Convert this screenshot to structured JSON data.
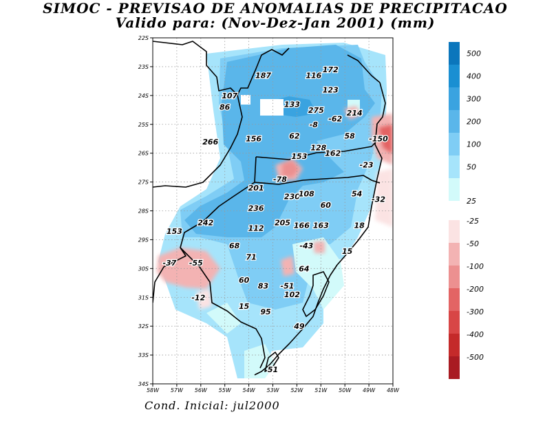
{
  "title_line1": "SIMOC - PREVISAO DE ANOMALIAS DE PRECIPITACAO",
  "title_line2": "Valido para: (Nov-Dez-Jan 2001) (mm)",
  "footer": "Cond. Inicial: jul2000",
  "axes": {
    "lon_labels": [
      "58W",
      "57W",
      "56W",
      "55W",
      "54W",
      "53W",
      "52W",
      "51W",
      "50W",
      "49W",
      "48W"
    ],
    "lat_labels": [
      "22S",
      "23S",
      "24S",
      "25S",
      "26S",
      "27S",
      "28S",
      "29S",
      "30S",
      "31S",
      "32S",
      "33S",
      "34S"
    ],
    "lon_range": [
      -58,
      -48
    ],
    "lat_range": [
      -34,
      -22
    ]
  },
  "colors": {
    "pos_25": "#d2fafa",
    "pos_50": "#a6e4fb",
    "pos_100": "#7fcdf5",
    "pos_200": "#5ab6ea",
    "pos_300": "#3aa3e0",
    "pos_400": "#1a8fd2",
    "pos_500": "#0b76bc",
    "neg_25": "#fbe3e3",
    "neg_50": "#f3b3b3",
    "neg_100": "#ec9090",
    "neg_200": "#e36464",
    "neg_300": "#d84646",
    "neg_400": "#c42a2a",
    "neg_500": "#a91b22"
  },
  "legend": {
    "positive": [
      "500",
      "400",
      "300",
      "200",
      "100",
      "50",
      "25"
    ],
    "negative": [
      "-25",
      "-50",
      "-100",
      "-200",
      "-300",
      "-400",
      "-500"
    ]
  },
  "values": [
    {
      "text": "187",
      "lon": -53.4,
      "lat": -23.3
    },
    {
      "text": "116",
      "lon": -51.3,
      "lat": -23.3
    },
    {
      "text": "172",
      "lon": -50.6,
      "lat": -23.1
    },
    {
      "text": "123",
      "lon": -50.6,
      "lat": -23.8
    },
    {
      "text": "107",
      "lon": -54.8,
      "lat": -24.0
    },
    {
      "text": "86",
      "lon": -55.0,
      "lat": -24.4
    },
    {
      "text": "133",
      "lon": -52.2,
      "lat": -24.3
    },
    {
      "text": "275",
      "lon": -51.2,
      "lat": -24.5
    },
    {
      "text": "-62",
      "lon": -50.4,
      "lat": -24.8
    },
    {
      "text": "214",
      "lon": -49.6,
      "lat": -24.6
    },
    {
      "text": "-8",
      "lon": -51.3,
      "lat": -25.0
    },
    {
      "text": "266",
      "lon": -55.6,
      "lat": -25.6
    },
    {
      "text": "156",
      "lon": -53.8,
      "lat": -25.5
    },
    {
      "text": "62",
      "lon": -52.1,
      "lat": -25.4
    },
    {
      "text": "58",
      "lon": -49.8,
      "lat": -25.4
    },
    {
      "text": "-150",
      "lon": -48.6,
      "lat": -25.5
    },
    {
      "text": "128",
      "lon": -51.1,
      "lat": -25.8
    },
    {
      "text": "153",
      "lon": -51.9,
      "lat": -26.1
    },
    {
      "text": "162",
      "lon": -50.5,
      "lat": -26.0
    },
    {
      "text": "-23",
      "lon": -49.1,
      "lat": -26.4
    },
    {
      "text": "-78",
      "lon": -52.7,
      "lat": -26.9
    },
    {
      "text": "201",
      "lon": -53.7,
      "lat": -27.2
    },
    {
      "text": "230",
      "lon": -52.2,
      "lat": -27.5
    },
    {
      "text": "108",
      "lon": -51.6,
      "lat": -27.4
    },
    {
      "text": "54",
      "lon": -49.5,
      "lat": -27.4
    },
    {
      "text": "-32",
      "lon": -48.6,
      "lat": -27.6
    },
    {
      "text": "60",
      "lon": -50.8,
      "lat": -27.8
    },
    {
      "text": "236",
      "lon": -53.7,
      "lat": -27.9
    },
    {
      "text": "242",
      "lon": -55.8,
      "lat": -28.4
    },
    {
      "text": "153",
      "lon": -57.1,
      "lat": -28.7
    },
    {
      "text": "112",
      "lon": -53.7,
      "lat": -28.6
    },
    {
      "text": "205",
      "lon": -52.6,
      "lat": -28.4
    },
    {
      "text": "166",
      "lon": -51.8,
      "lat": -28.5
    },
    {
      "text": "163",
      "lon": -51.0,
      "lat": -28.5
    },
    {
      "text": "18",
      "lon": -49.4,
      "lat": -28.5
    },
    {
      "text": "68",
      "lon": -54.6,
      "lat": -29.2
    },
    {
      "text": "-43",
      "lon": -51.6,
      "lat": -29.2
    },
    {
      "text": "15",
      "lon": -49.9,
      "lat": -29.4
    },
    {
      "text": "71",
      "lon": -53.9,
      "lat": -29.6
    },
    {
      "text": "-37",
      "lon": -57.3,
      "lat": -29.8
    },
    {
      "text": "-55",
      "lon": -56.2,
      "lat": -29.8
    },
    {
      "text": "64",
      "lon": -51.7,
      "lat": -30.0
    },
    {
      "text": "60",
      "lon": -54.2,
      "lat": -30.4
    },
    {
      "text": "83",
      "lon": -53.4,
      "lat": -30.6
    },
    {
      "text": "-51",
      "lon": -52.4,
      "lat": -30.6
    },
    {
      "text": "102",
      "lon": -52.2,
      "lat": -30.9
    },
    {
      "text": "-12",
      "lon": -56.1,
      "lat": -31.0
    },
    {
      "text": "15",
      "lon": -54.2,
      "lat": -31.3
    },
    {
      "text": "95",
      "lon": -53.3,
      "lat": -31.5
    },
    {
      "text": "49",
      "lon": -51.9,
      "lat": -32.0
    },
    {
      "text": "51",
      "lon": -53.0,
      "lat": -33.5
    }
  ]
}
